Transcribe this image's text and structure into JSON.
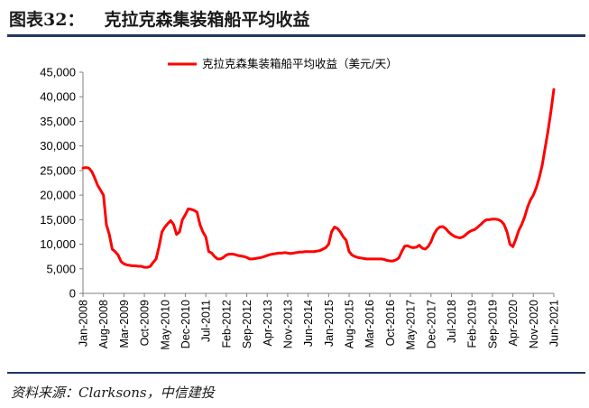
{
  "header": {
    "figure_number": "图表32：",
    "title": "克拉克森集装箱船平均收益"
  },
  "footer": {
    "source": "资料来源：Clarksons，中信建投"
  },
  "chart_data": {
    "type": "line",
    "title": "克拉克森集装箱船平均收益",
    "xlabel": "",
    "ylabel": "",
    "ylim": [
      0,
      45000
    ],
    "yticks": [
      "0",
      "5,000",
      "10,000",
      "15,000",
      "20,000",
      "25,000",
      "30,000",
      "35,000",
      "40,000",
      "45,000"
    ],
    "xticks": [
      "Jan-2008",
      "Aug-2008",
      "Mar-2009",
      "Oct-2009",
      "May-2010",
      "Dec-2010",
      "Jul-2011",
      "Feb-2012",
      "Sep-2012",
      "Apr-2013",
      "Nov-2013",
      "Jun-2014",
      "Jan-2015",
      "Aug-2015",
      "Mar-2016",
      "Oct-2016",
      "May-2017",
      "Dec-2017",
      "Jul-2018",
      "Feb-2019",
      "Sep-2019",
      "Apr-2020",
      "Nov-2020",
      "Jun-2021"
    ],
    "grid": false,
    "legend": "top-center",
    "colors": {
      "series": "#ff0000"
    },
    "series": [
      {
        "name": "克拉克森集装箱船平均收益（美元/天）",
        "points": [
          [
            "2008-01",
            25500
          ],
          [
            "2008-02",
            25600
          ],
          [
            "2008-03",
            25500
          ],
          [
            "2008-04",
            24800
          ],
          [
            "2008-05",
            23500
          ],
          [
            "2008-06",
            22000
          ],
          [
            "2008-07",
            21000
          ],
          [
            "2008-08",
            20000
          ],
          [
            "2008-09",
            14000
          ],
          [
            "2008-10",
            12000
          ],
          [
            "2008-11",
            9000
          ],
          [
            "2008-12",
            8500
          ],
          [
            "2009-01",
            7800
          ],
          [
            "2009-02",
            6500
          ],
          [
            "2009-03",
            6000
          ],
          [
            "2009-04",
            5800
          ],
          [
            "2009-05",
            5700
          ],
          [
            "2009-06",
            5600
          ],
          [
            "2009-07",
            5600
          ],
          [
            "2009-08",
            5500
          ],
          [
            "2009-09",
            5500
          ],
          [
            "2009-10",
            5300
          ],
          [
            "2009-11",
            5300
          ],
          [
            "2009-12",
            5500
          ],
          [
            "2010-01",
            6300
          ],
          [
            "2010-02",
            7000
          ],
          [
            "2010-03",
            9500
          ],
          [
            "2010-04",
            12500
          ],
          [
            "2010-05",
            13500
          ],
          [
            "2010-06",
            14200
          ],
          [
            "2010-07",
            14800
          ],
          [
            "2010-08",
            14000
          ],
          [
            "2010-09",
            12000
          ],
          [
            "2010-10",
            12500
          ],
          [
            "2010-11",
            15000
          ],
          [
            "2010-12",
            16000
          ],
          [
            "2011-01",
            17200
          ],
          [
            "2011-02",
            17100
          ],
          [
            "2011-03",
            16900
          ],
          [
            "2011-04",
            16500
          ],
          [
            "2011-05",
            14000
          ],
          [
            "2011-06",
            12500
          ],
          [
            "2011-07",
            11500
          ],
          [
            "2011-08",
            8500
          ],
          [
            "2011-09",
            8200
          ],
          [
            "2011-10",
            7500
          ],
          [
            "2011-11",
            7000
          ],
          [
            "2011-12",
            7000
          ],
          [
            "2012-01",
            7300
          ],
          [
            "2012-02",
            7800
          ],
          [
            "2012-03",
            8000
          ],
          [
            "2012-04",
            8000
          ],
          [
            "2012-05",
            7900
          ],
          [
            "2012-06",
            7700
          ],
          [
            "2012-07",
            7600
          ],
          [
            "2012-08",
            7500
          ],
          [
            "2012-09",
            7300
          ],
          [
            "2012-10",
            7000
          ],
          [
            "2012-11",
            7000
          ],
          [
            "2012-12",
            7100
          ],
          [
            "2013-01",
            7200
          ],
          [
            "2013-02",
            7300
          ],
          [
            "2013-03",
            7500
          ],
          [
            "2013-04",
            7700
          ],
          [
            "2013-05",
            7900
          ],
          [
            "2013-06",
            8000
          ],
          [
            "2013-07",
            8100
          ],
          [
            "2013-08",
            8200
          ],
          [
            "2013-09",
            8200
          ],
          [
            "2013-10",
            8300
          ],
          [
            "2013-11",
            8200
          ],
          [
            "2013-12",
            8100
          ],
          [
            "2014-01",
            8200
          ],
          [
            "2014-02",
            8300
          ],
          [
            "2014-03",
            8400
          ],
          [
            "2014-04",
            8400
          ],
          [
            "2014-05",
            8500
          ],
          [
            "2014-06",
            8500
          ],
          [
            "2014-07",
            8500
          ],
          [
            "2014-08",
            8500
          ],
          [
            "2014-09",
            8600
          ],
          [
            "2014-10",
            8700
          ],
          [
            "2014-11",
            9000
          ],
          [
            "2014-12",
            9300
          ],
          [
            "2015-01",
            10000
          ],
          [
            "2015-02",
            12500
          ],
          [
            "2015-03",
            13500
          ],
          [
            "2015-04",
            13200
          ],
          [
            "2015-05",
            12500
          ],
          [
            "2015-06",
            11500
          ],
          [
            "2015-07",
            10800
          ],
          [
            "2015-08",
            8500
          ],
          [
            "2015-09",
            7800
          ],
          [
            "2015-10",
            7500
          ],
          [
            "2015-11",
            7300
          ],
          [
            "2015-12",
            7200
          ],
          [
            "2016-01",
            7100
          ],
          [
            "2016-02",
            7000
          ],
          [
            "2016-03",
            7000
          ],
          [
            "2016-04",
            7000
          ],
          [
            "2016-05",
            7000
          ],
          [
            "2016-06",
            7000
          ],
          [
            "2016-07",
            7000
          ],
          [
            "2016-08",
            6900
          ],
          [
            "2016-09",
            6700
          ],
          [
            "2016-10",
            6600
          ],
          [
            "2016-11",
            6600
          ],
          [
            "2016-12",
            6800
          ],
          [
            "2017-01",
            7200
          ],
          [
            "2017-02",
            8500
          ],
          [
            "2017-03",
            9600
          ],
          [
            "2017-04",
            9700
          ],
          [
            "2017-05",
            9400
          ],
          [
            "2017-06",
            9300
          ],
          [
            "2017-07",
            9400
          ],
          [
            "2017-08",
            9800
          ],
          [
            "2017-09",
            9200
          ],
          [
            "2017-10",
            9000
          ],
          [
            "2017-11",
            9500
          ],
          [
            "2017-12",
            10500
          ],
          [
            "2018-01",
            12000
          ],
          [
            "2018-02",
            13000
          ],
          [
            "2018-03",
            13500
          ],
          [
            "2018-04",
            13600
          ],
          [
            "2018-05",
            13200
          ],
          [
            "2018-06",
            12500
          ],
          [
            "2018-07",
            12000
          ],
          [
            "2018-08",
            11600
          ],
          [
            "2018-09",
            11400
          ],
          [
            "2018-10",
            11300
          ],
          [
            "2018-11",
            11500
          ],
          [
            "2018-12",
            12000
          ],
          [
            "2019-01",
            12500
          ],
          [
            "2019-02",
            12800
          ],
          [
            "2019-03",
            13000
          ],
          [
            "2019-04",
            13500
          ],
          [
            "2019-05",
            14000
          ],
          [
            "2019-06",
            14600
          ],
          [
            "2019-07",
            15000
          ],
          [
            "2019-08",
            15000
          ],
          [
            "2019-09",
            15100
          ],
          [
            "2019-10",
            15100
          ],
          [
            "2019-11",
            15000
          ],
          [
            "2019-12",
            14700
          ],
          [
            "2020-01",
            14000
          ],
          [
            "2020-02",
            12500
          ],
          [
            "2020-03",
            10000
          ],
          [
            "2020-04",
            9500
          ],
          [
            "2020-05",
            11000
          ],
          [
            "2020-06",
            12800
          ],
          [
            "2020-07",
            14000
          ],
          [
            "2020-08",
            15500
          ],
          [
            "2020-09",
            17500
          ],
          [
            "2020-10",
            19000
          ],
          [
            "2020-11",
            20000
          ],
          [
            "2020-12",
            21500
          ],
          [
            "2021-01",
            23500
          ],
          [
            "2021-02",
            26000
          ],
          [
            "2021-03",
            29500
          ],
          [
            "2021-04",
            33000
          ],
          [
            "2021-05",
            37000
          ],
          [
            "2021-06",
            41500
          ]
        ]
      }
    ]
  }
}
